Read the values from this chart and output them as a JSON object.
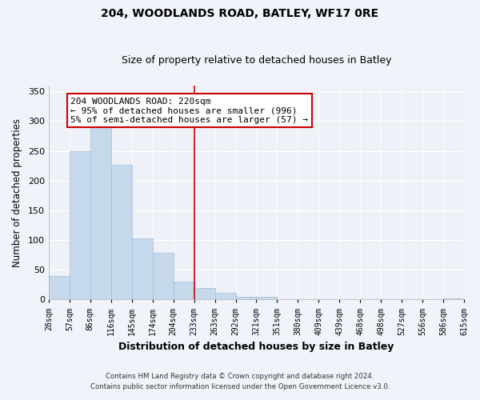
{
  "title": "204, WOODLANDS ROAD, BATLEY, WF17 0RE",
  "subtitle": "Size of property relative to detached houses in Batley",
  "xlabel": "Distribution of detached houses by size in Batley",
  "ylabel": "Number of detached properties",
  "bar_values": [
    40,
    250,
    291,
    226,
    103,
    78,
    30,
    19,
    11,
    5,
    4,
    1,
    0,
    1,
    0,
    0,
    0,
    0,
    0,
    2
  ],
  "bar_labels": [
    "28sqm",
    "57sqm",
    "86sqm",
    "116sqm",
    "145sqm",
    "174sqm",
    "204sqm",
    "233sqm",
    "263sqm",
    "292sqm",
    "321sqm",
    "351sqm",
    "380sqm",
    "409sqm",
    "439sqm",
    "468sqm",
    "498sqm",
    "527sqm",
    "556sqm",
    "586sqm",
    "615sqm"
  ],
  "bar_color": "#c6d9ec",
  "bar_edge_color": "#a0bcd4",
  "highlight_color": "#cc0000",
  "highlight_bar_index": 6,
  "annotation_text": "204 WOODLANDS ROAD: 220sqm\n← 95% of detached houses are smaller (996)\n5% of semi-detached houses are larger (57) →",
  "annotation_box_color": "#ffffff",
  "annotation_box_edge": "#cc0000",
  "ylim": [
    0,
    360
  ],
  "yticks": [
    0,
    50,
    100,
    150,
    200,
    250,
    300,
    350
  ],
  "footer1": "Contains HM Land Registry data © Crown copyright and database right 2024.",
  "footer2": "Contains public sector information licensed under the Open Government Licence v3.0.",
  "fig_facecolor": "#f0f4fa",
  "plot_facecolor": "#eef2f8",
  "grid_color": "#ffffff",
  "title_fontsize": 10,
  "subtitle_fontsize": 9
}
